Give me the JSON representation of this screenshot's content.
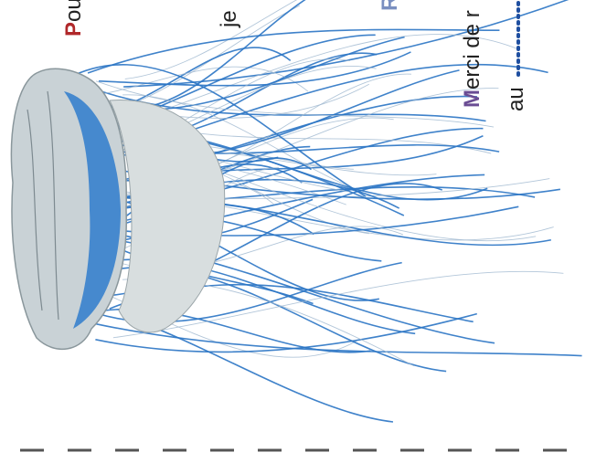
{
  "texts": [
    {
      "initial": "P",
      "rest": "ou"
    },
    {
      "initial": "",
      "rest": "je"
    },
    {
      "initial": "R",
      "rest": ""
    },
    {
      "initial": "M",
      "rest": "erci de r"
    },
    {
      "initial": "",
      "rest": "au"
    }
  ]
}
